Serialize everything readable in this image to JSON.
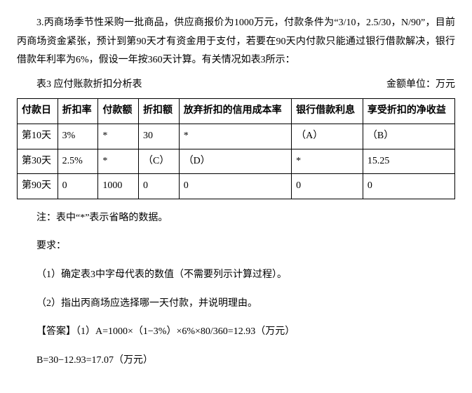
{
  "problem": {
    "intro": "3.丙商场季节性采购一批商品，供应商报价为1000万元，付款条件为“3/10，2.5/30，N/90”，目前丙商场资金紧张，预计到第90天才有资金用于支付，若要在90天内付款只能通过银行借款解决，银行借款年利率为6%，假设一年按360天计算。有关情况如表3所示：",
    "table_caption": "表3 应付账款折扣分析表",
    "unit_label": "金额单位：万元",
    "columns": [
      "付款日",
      "折扣率",
      "付款额",
      "折扣额",
      "放弃折扣的信用成本率",
      "银行借款利息",
      "享受折扣的净收益"
    ],
    "rows": [
      [
        "第10天",
        "3%",
        "*",
        "30",
        "*",
        "（A）",
        "（B）"
      ],
      [
        "第30天",
        "2.5%",
        "*",
        "（C）",
        "（D）",
        "*",
        "15.25"
      ],
      [
        "第90天",
        "0",
        "1000",
        "0",
        "0",
        "0",
        "0"
      ]
    ],
    "note": "注：表中“*”表示省略的数据。",
    "require_label": "要求：",
    "req1": "（1）确定表3中字母代表的数值（不需要列示计算过程）。",
    "req2": "（2）指出丙商场应选择哪一天付款，并说明理由。",
    "answer_label": "【答案】",
    "answer1": "（1）A=1000×（1−3%）×6%×80/360=12.93（万元）",
    "answer2": "B=30−12.93=17.07（万元）"
  }
}
